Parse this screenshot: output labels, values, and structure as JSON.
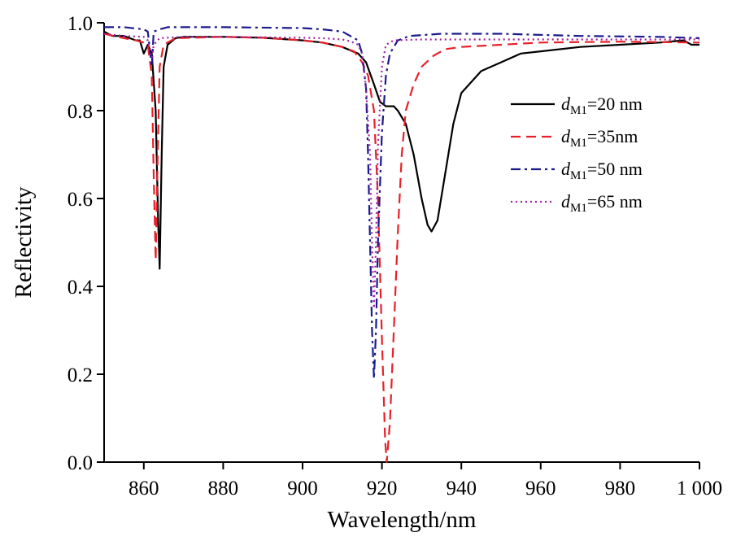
{
  "chart_data": {
    "type": "line",
    "xlabel": "Wavelength/nm",
    "ylabel": "Reflectivity",
    "xlim": [
      850,
      1000
    ],
    "ylim": [
      0,
      1.0
    ],
    "x_ticks": [
      860,
      880,
      900,
      920,
      940,
      960,
      980,
      1000
    ],
    "x_tick_labels": [
      "860",
      "880",
      "900",
      "920",
      "940",
      "960",
      "980",
      "1 000"
    ],
    "y_ticks": [
      0,
      0.2,
      0.4,
      0.6,
      0.8,
      1.0
    ],
    "y_tick_labels": [
      "0.0",
      "0.2",
      "0.4",
      "0.6",
      "0.8",
      "1.0"
    ],
    "grid": false,
    "legend_position": "right",
    "series": [
      {
        "name": "dM1=20 nm",
        "label_italic": "d",
        "label_sub": "M1",
        "label_rest": "=20 nm",
        "color": "#000000",
        "dash": "solid",
        "points": [
          [
            850,
            0.98
          ],
          [
            852,
            0.97
          ],
          [
            855,
            0.97
          ],
          [
            858,
            0.96
          ],
          [
            859,
            0.96
          ],
          [
            860,
            0.93
          ],
          [
            861,
            0.95
          ],
          [
            862,
            0.93
          ],
          [
            863,
            0.8
          ],
          [
            863.6,
            0.55
          ],
          [
            864,
            0.44
          ],
          [
            864.5,
            0.7
          ],
          [
            865,
            0.9
          ],
          [
            866,
            0.95
          ],
          [
            868,
            0.965
          ],
          [
            870,
            0.968
          ],
          [
            880,
            0.968
          ],
          [
            890,
            0.966
          ],
          [
            900,
            0.96
          ],
          [
            905,
            0.955
          ],
          [
            910,
            0.945
          ],
          [
            914,
            0.93
          ],
          [
            916,
            0.91
          ],
          [
            918,
            0.86
          ],
          [
            919.5,
            0.82
          ],
          [
            921,
            0.81
          ],
          [
            922,
            0.81
          ],
          [
            923,
            0.81
          ],
          [
            924,
            0.8
          ],
          [
            926,
            0.77
          ],
          [
            928,
            0.7
          ],
          [
            930,
            0.6
          ],
          [
            931.5,
            0.54
          ],
          [
            932.5,
            0.525
          ],
          [
            934,
            0.55
          ],
          [
            936,
            0.66
          ],
          [
            938,
            0.77
          ],
          [
            940,
            0.84
          ],
          [
            945,
            0.89
          ],
          [
            950,
            0.91
          ],
          [
            955,
            0.93
          ],
          [
            960,
            0.935
          ],
          [
            970,
            0.945
          ],
          [
            980,
            0.95
          ],
          [
            990,
            0.955
          ],
          [
            996,
            0.96
          ],
          [
            998,
            0.95
          ],
          [
            1000,
            0.95
          ]
        ]
      },
      {
        "name": "dM1=35nm",
        "label_italic": "d",
        "label_sub": "M1",
        "label_rest": "=35nm",
        "color": "#e8202a",
        "dash": "dashed",
        "points": [
          [
            850,
            0.975
          ],
          [
            855,
            0.965
          ],
          [
            858,
            0.96
          ],
          [
            860,
            0.955
          ],
          [
            861,
            0.95
          ],
          [
            862,
            0.88
          ],
          [
            862.5,
            0.65
          ],
          [
            863,
            0.46
          ],
          [
            863.5,
            0.7
          ],
          [
            864,
            0.9
          ],
          [
            865,
            0.95
          ],
          [
            868,
            0.965
          ],
          [
            880,
            0.968
          ],
          [
            890,
            0.966
          ],
          [
            900,
            0.96
          ],
          [
            905,
            0.955
          ],
          [
            910,
            0.945
          ],
          [
            913,
            0.935
          ],
          [
            915,
            0.91
          ],
          [
            916.5,
            0.88
          ],
          [
            918,
            0.8
          ],
          [
            919,
            0.6
          ],
          [
            920,
            0.28
          ],
          [
            920.8,
            0.05
          ],
          [
            921.2,
            0.0
          ],
          [
            922,
            0.09
          ],
          [
            923,
            0.3
          ],
          [
            924,
            0.52
          ],
          [
            925,
            0.7
          ],
          [
            926,
            0.8
          ],
          [
            928,
            0.86
          ],
          [
            930,
            0.9
          ],
          [
            933,
            0.925
          ],
          [
            936,
            0.94
          ],
          [
            940,
            0.945
          ],
          [
            950,
            0.95
          ],
          [
            960,
            0.955
          ],
          [
            980,
            0.957
          ],
          [
            1000,
            0.955
          ]
        ]
      },
      {
        "name": "dM1=50 nm",
        "label_italic": "d",
        "label_sub": "M1",
        "label_rest": "=50 nm",
        "color": "#1a1a8c",
        "dash": "dashdot",
        "points": [
          [
            850,
            0.99
          ],
          [
            855,
            0.99
          ],
          [
            860,
            0.985
          ],
          [
            861,
            0.98
          ],
          [
            862,
            0.9
          ],
          [
            862.5,
            0.98
          ],
          [
            864,
            0.985
          ],
          [
            866,
            0.99
          ],
          [
            880,
            0.99
          ],
          [
            900,
            0.988
          ],
          [
            905,
            0.985
          ],
          [
            910,
            0.98
          ],
          [
            912,
            0.97
          ],
          [
            914,
            0.96
          ],
          [
            915,
            0.93
          ],
          [
            916,
            0.85
          ],
          [
            916.5,
            0.7
          ],
          [
            917,
            0.5
          ],
          [
            917.5,
            0.3
          ],
          [
            918,
            0.19
          ],
          [
            918.5,
            0.3
          ],
          [
            919,
            0.5
          ],
          [
            920,
            0.75
          ],
          [
            921,
            0.88
          ],
          [
            922,
            0.93
          ],
          [
            924,
            0.96
          ],
          [
            927,
            0.97
          ],
          [
            935,
            0.975
          ],
          [
            950,
            0.975
          ],
          [
            970,
            0.97
          ],
          [
            990,
            0.968
          ],
          [
            1000,
            0.965
          ]
        ]
      },
      {
        "name": "dM1=65 nm",
        "label_italic": "d",
        "label_sub": "M1",
        "label_rest": "=65 nm",
        "color": "#a020a0",
        "dash": "dotted",
        "points": [
          [
            850,
            0.975
          ],
          [
            855,
            0.97
          ],
          [
            860,
            0.968
          ],
          [
            861,
            0.96
          ],
          [
            862,
            0.92
          ],
          [
            862.5,
            0.95
          ],
          [
            864,
            0.965
          ],
          [
            870,
            0.968
          ],
          [
            880,
            0.968
          ],
          [
            900,
            0.966
          ],
          [
            905,
            0.965
          ],
          [
            910,
            0.962
          ],
          [
            912,
            0.958
          ],
          [
            914,
            0.95
          ],
          [
            915,
            0.93
          ],
          [
            916,
            0.85
          ],
          [
            917,
            0.7
          ],
          [
            917.5,
            0.5
          ],
          [
            918,
            0.35
          ],
          [
            918.5,
            0.5
          ],
          [
            919,
            0.72
          ],
          [
            920,
            0.9
          ],
          [
            921,
            0.95
          ],
          [
            923,
            0.96
          ],
          [
            930,
            0.962
          ],
          [
            950,
            0.962
          ],
          [
            1000,
            0.962
          ]
        ]
      }
    ]
  }
}
